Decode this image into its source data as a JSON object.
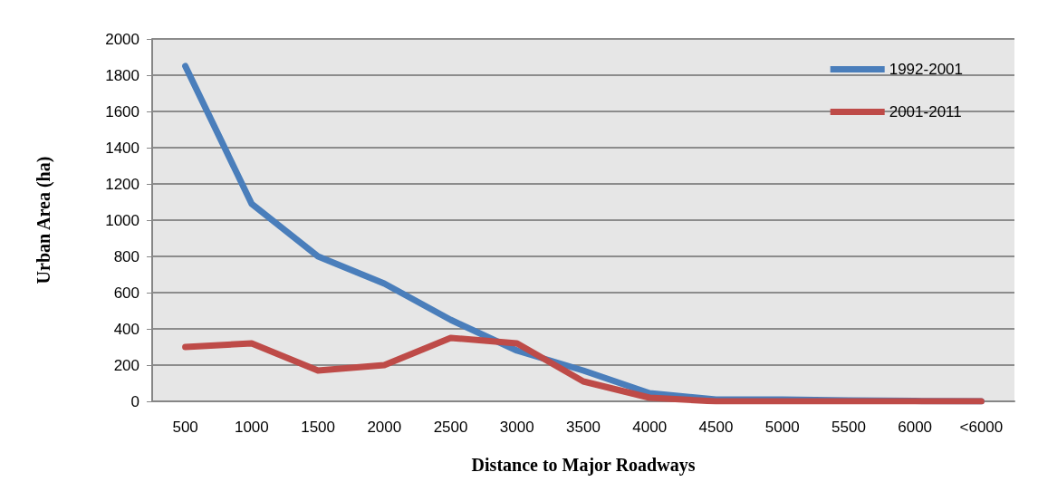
{
  "chart_data": {
    "type": "line",
    "xlabel": "Distance to Major Roadways",
    "ylabel": "Urban Area (ha)",
    "categories": [
      "500",
      "1000",
      "1500",
      "2000",
      "2500",
      "3000",
      "3500",
      "4000",
      "4500",
      "5000",
      "5500",
      "6000",
      "<6000"
    ],
    "series": [
      {
        "name": "1992-2001",
        "color": "#4a7ebb",
        "values": [
          1850,
          1090,
          800,
          650,
          450,
          280,
          170,
          45,
          10,
          10,
          5,
          2,
          0
        ]
      },
      {
        "name": "2001-2011",
        "color": "#be4b48",
        "values": [
          300,
          320,
          170,
          200,
          350,
          320,
          110,
          20,
          0,
          0,
          0,
          0,
          0
        ]
      }
    ],
    "ylim": [
      0,
      2000
    ],
    "yticks": [
      0,
      200,
      400,
      600,
      800,
      1000,
      1200,
      1400,
      1600,
      1800,
      2000
    ],
    "grid": "y",
    "legend": "top right",
    "marker": "none",
    "line_style": "solid"
  }
}
